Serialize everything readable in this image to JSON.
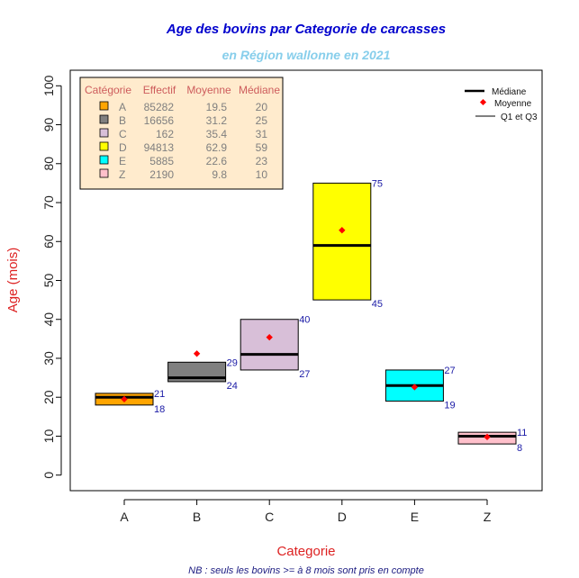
{
  "chart_data": {
    "type": "boxplot",
    "title": "Age des bovins par Categorie de carcasses",
    "subtitle": "en Région wallonne en 2021",
    "xlabel": "Categorie",
    "ylabel": "Age (mois)",
    "note": "NB : seuls les bovins >= à 8 mois sont pris en compte",
    "ylim": [
      -4,
      104
    ],
    "yticks": [
      0,
      10,
      20,
      30,
      40,
      50,
      60,
      70,
      80,
      90,
      100
    ],
    "categories": [
      "A",
      "B",
      "C",
      "D",
      "E",
      "Z"
    ],
    "q1": [
      18,
      24,
      27,
      45,
      19,
      8
    ],
    "q3": [
      21,
      29,
      40,
      75,
      27,
      11
    ],
    "median": [
      20,
      25,
      31,
      59,
      23,
      10
    ],
    "mean": [
      19.5,
      31.2,
      35.4,
      62.9,
      22.6,
      9.8
    ],
    "effectif": [
      85282,
      16656,
      162,
      94813,
      5885,
      2190
    ],
    "colors": [
      "#FFA500",
      "#808080",
      "#D8BFD8",
      "#FFFF00",
      "#00FFFF",
      "#FFC0CB"
    ],
    "mean_color": "#FF0000",
    "label_color": "#1a1aa6",
    "table": {
      "headers": [
        "Catégorie",
        "Effectif",
        "Moyenne",
        "Médiane"
      ],
      "header_color": "#CD5C5C",
      "text_color": "#7f7f7f",
      "background": "#FFEBCD",
      "rows": [
        {
          "cat": "A",
          "effectif": "85282",
          "moyenne": "19.5",
          "mediane": "20"
        },
        {
          "cat": "B",
          "effectif": "16656",
          "moyenne": "31.2",
          "mediane": "25"
        },
        {
          "cat": "C",
          "effectif": "162",
          "moyenne": "35.4",
          "mediane": "31"
        },
        {
          "cat": "D",
          "effectif": "94813",
          "moyenne": "62.9",
          "mediane": "59"
        },
        {
          "cat": "E",
          "effectif": "5885",
          "moyenne": "22.6",
          "mediane": "23"
        },
        {
          "cat": "Z",
          "effectif": "2190",
          "moyenne": "9.8",
          "mediane": "10"
        }
      ]
    },
    "legend": {
      "position": "top-right",
      "items": [
        "Médiane",
        "Moyenne",
        "Q1 et Q3"
      ]
    },
    "title_color": "#0000CD",
    "subtitle_color": "#87CEEB",
    "axis_label_color": "#DD2222",
    "note_color": "#1a1a80"
  }
}
